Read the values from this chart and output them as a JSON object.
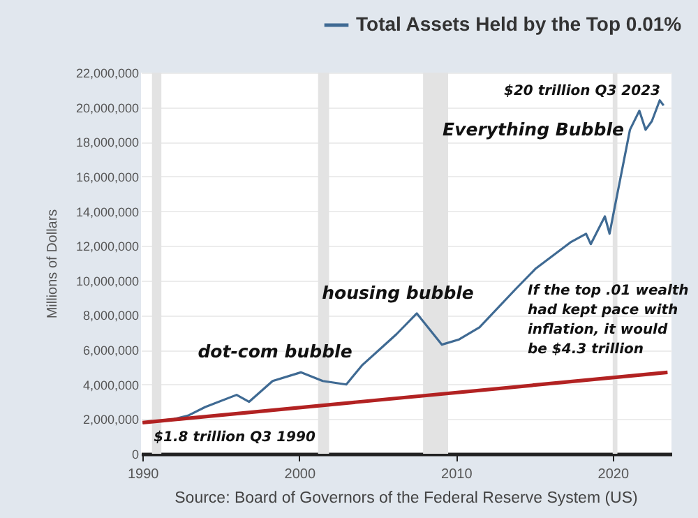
{
  "chart_data": {
    "type": "line",
    "ylabel": "Millions of Dollars",
    "annotations": [
      "$20 trillion Q3 2023",
      "Everything Bubble",
      "housing bubble",
      "dot-com bubble",
      "$1.8 trillion Q3 1990",
      "If the top .01 wealth\nhad kept pace with\ninflation, it would\nbe  $4.3 trillion",
      "Source: Board of Governors of the Federal Reserve System (US)"
    ],
    "series": [
      {
        "name": "Total Assets Held by the Top 0.01%",
        "color": "#3f6a93",
        "x": [
          1990,
          1992,
          1992.9,
          1994,
          1996,
          1996.8,
          1998.3,
          2000.1,
          2001.5,
          2003,
          2004,
          2006.2,
          2007.5,
          2009.1,
          2010.2,
          2011.5,
          2013.8,
          2015.1,
          2017.3,
          2018.3,
          2018.6,
          2019.5,
          2019.8,
          2020.1,
          2021.1,
          2021.7,
          2022.1,
          2022.5,
          2023,
          2023.25
        ],
        "values": [
          1800000,
          2000000,
          2200000,
          2700000,
          3400000,
          3000000,
          4200000,
          4700000,
          4200000,
          4000000,
          5100000,
          6900000,
          8100000,
          6300000,
          6600000,
          7300000,
          9500000,
          10700000,
          12200000,
          12700000,
          12100000,
          13700000,
          12700000,
          14100000,
          18700000,
          19800000,
          18700000,
          19200000,
          20400000,
          20100000
        ]
      },
      {
        "color": "#b22222",
        "x": [
          1990,
          2023.5
        ],
        "values": [
          1800000,
          4700000
        ]
      }
    ],
    "xlim": [
      1989.9,
      2023.75
    ],
    "xticks": [
      1990,
      2000,
      2010,
      2020
    ],
    "ylim": [
      0,
      22000000
    ],
    "yticks": [
      0,
      {
        "value": 2000000,
        "label": "2,000,000"
      },
      {
        "value": 4000000,
        "label": "4,000,000"
      },
      {
        "value": 6000000,
        "label": "6,000,000"
      },
      {
        "value": 8000000,
        "label": "8,000,000"
      },
      {
        "value": 10000000,
        "label": "10,000,000"
      },
      {
        "value": 12000000,
        "label": "12,000,000"
      },
      {
        "value": 14000000,
        "label": "14,000,000"
      },
      {
        "value": 16000000,
        "label": "16,000,000"
      },
      {
        "value": 18000000,
        "label": "18,000,000"
      },
      {
        "value": 20000000,
        "label": "20,000,000"
      },
      {
        "value": 22000000,
        "label": "22,000,000"
      }
    ],
    "bands": [
      {
        "axis": "x",
        "from": 1990.6,
        "to": 1991.2,
        "color": "#e3e3e3"
      },
      {
        "axis": "x",
        "from": 2001.2,
        "to": 2001.9,
        "color": "#e3e3e3"
      },
      {
        "axis": "x",
        "from": 2007.9,
        "to": 2009.5,
        "color": "#e3e3e3"
      },
      {
        "axis": "x",
        "from": 2020.0,
        "to": 2020.3,
        "color": "#e3e3e3"
      }
    ],
    "grid": "y",
    "legend": "top",
    "line_style": "solid"
  }
}
